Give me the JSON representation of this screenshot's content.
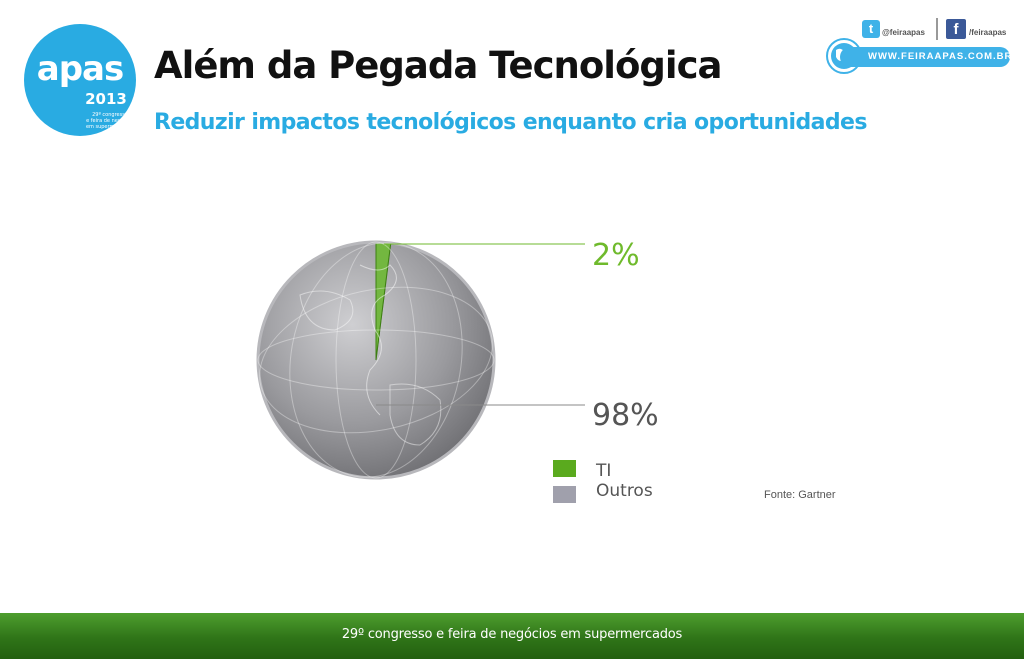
{
  "logo": {
    "name": "apas",
    "year": "2013",
    "tagline": [
      "29º congresso",
      "e feira de negócios",
      "em supermercados"
    ]
  },
  "header": {
    "title": "Além da Pegada Tecnológica",
    "subtitle": "Reduzir impactos tecnológicos enquanto cria oportunidades"
  },
  "social": {
    "twitter_icon": "twitter-icon",
    "twitter_handle": "@feiraapas",
    "facebook_icon": "facebook-icon",
    "facebook_handle": "/feiraapas",
    "website": "WWW.FEIRAAPAS.COM.BR"
  },
  "chart_data": {
    "type": "pie",
    "categories": [
      "TI",
      "Outros"
    ],
    "values": [
      2,
      98
    ],
    "data_labels": [
      "2%",
      "98%"
    ],
    "colors": [
      "#5aaa1e",
      "#a0a0ac"
    ],
    "label_colors": [
      "#6fba2c",
      "#555555"
    ],
    "legend_position": "bottom-right",
    "source": "Fonte: Gartner"
  },
  "footer": {
    "text": "29º congresso e feira de negócios em supermercados"
  }
}
